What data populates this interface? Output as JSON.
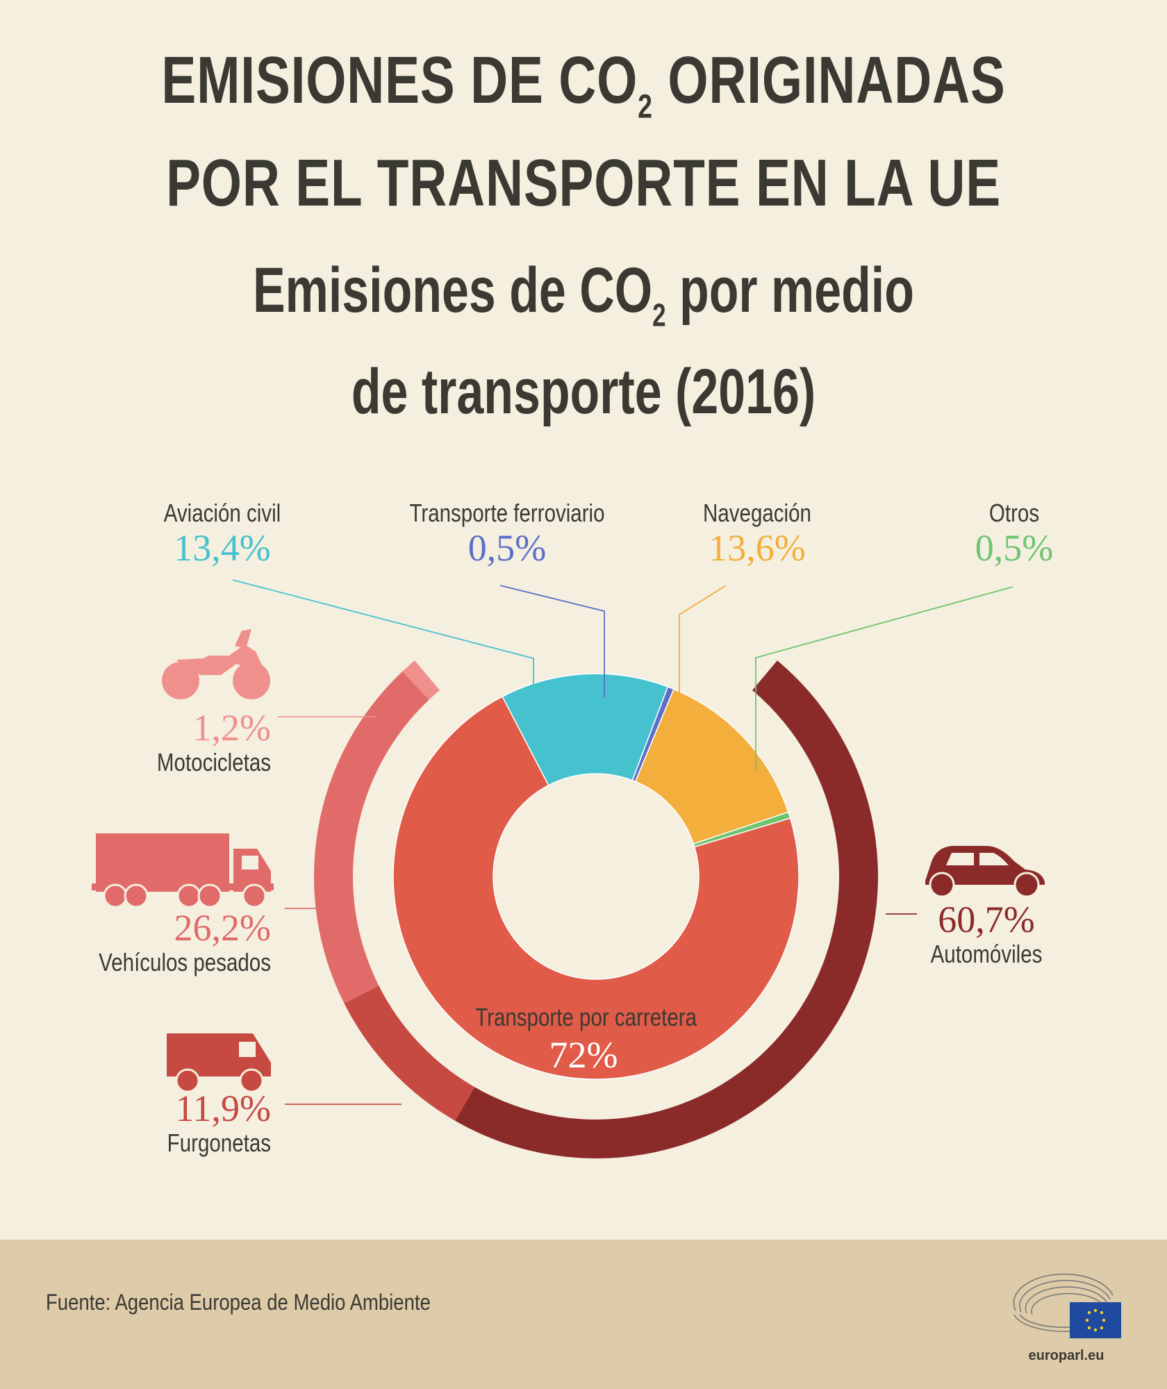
{
  "title": {
    "line1_before": "EMISIONES DE CO",
    "line1_sub": "2",
    "line1_after": " ORIGINADAS",
    "line2": "POR EL TRANSPORTE EN LA UE"
  },
  "subtitle": {
    "line1_before": "Emisiones de CO",
    "line1_sub": "2",
    "line1_after": " por medio",
    "line2": "de transporte (2016)"
  },
  "chart_data": {
    "type": "pie",
    "inner_ring": [
      {
        "label": "Aviación civil",
        "value_text": "13,4%",
        "value": 13.4,
        "color": "#45c2ce"
      },
      {
        "label": "Transporte ferroviario",
        "value_text": "0,5%",
        "value": 0.5,
        "color": "#5b6fc8"
      },
      {
        "label": "Navegación",
        "value_text": "13,6%",
        "value": 13.6,
        "color": "#f3ae3b"
      },
      {
        "label": "Otros",
        "value_text": "0,5%",
        "value": 0.5,
        "color": "#6cc56e"
      },
      {
        "label": "Transporte por carretera",
        "value_text": "72%",
        "value": 72,
        "color": "#e05b48"
      }
    ],
    "outer_ring": [
      {
        "label": "Motocicletas",
        "value_text": "1,2%",
        "value": 1.2,
        "color": "#f0908c",
        "icon": "motorcycle-icon"
      },
      {
        "label": "Vehículos pesados",
        "value_text": "26,2%",
        "value": 26.2,
        "color": "#e16b69",
        "icon": "truck-icon"
      },
      {
        "label": "Furgonetas",
        "value_text": "11,9%",
        "value": 11.9,
        "color": "#c64a42",
        "icon": "van-icon"
      },
      {
        "label": "Automóviles",
        "value_text": "60,7%",
        "value": 60.7,
        "color": "#8b2b29",
        "icon": "car-icon"
      }
    ]
  },
  "footer": {
    "source": "Fuente: Agencia Europea de Medio Ambiente",
    "logo_text": "europarl.eu"
  }
}
